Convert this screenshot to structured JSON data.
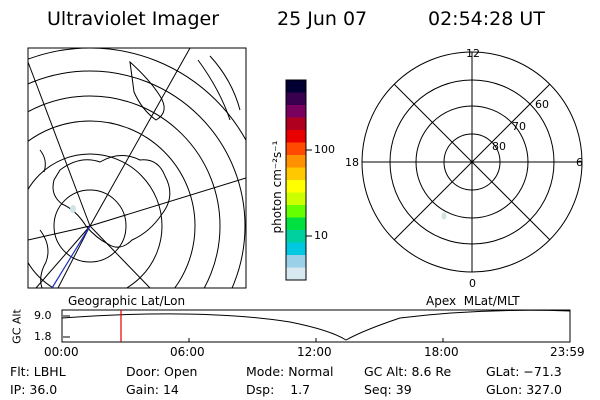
{
  "header": {
    "title": "Ultraviolet Imager",
    "date": "25 Jun 07",
    "time": "02:54:28 UT"
  },
  "colorbar": {
    "unit_label": "photon cm⁻²s⁻¹",
    "ticks": [
      "100",
      "10"
    ],
    "colors": [
      "#000033",
      "#3a0050",
      "#7a0060",
      "#b00020",
      "#e80000",
      "#ff4a00",
      "#ff9000",
      "#ffc800",
      "#ffff00",
      "#ccff00",
      "#66ff00",
      "#00e040",
      "#00d0a0",
      "#00c8e0",
      "#9ad0e8",
      "#d8e8f0"
    ]
  },
  "left_map": {
    "label": "Geographic Lat/Lon"
  },
  "right_map": {
    "label": "Apex  MLat/MLT",
    "mlt_labels": {
      "top": "12",
      "left": "18",
      "right": "6",
      "bottom": "0"
    },
    "lat_labels": [
      "60",
      "70",
      "80"
    ]
  },
  "altitude_plot": {
    "ylabel": "GC Alt",
    "yticks": [
      "9.0",
      "1.8"
    ],
    "xticks": [
      "00:00",
      "06:00",
      "12:00",
      "18:00",
      "23:59"
    ],
    "marker_time": "02:54"
  },
  "status": {
    "row1": [
      {
        "key": "Flt:",
        "val": "LBHL"
      },
      {
        "key": "Door:",
        "val": "Open"
      },
      {
        "key": "Mode:",
        "val": "Normal"
      },
      {
        "key": "GC Alt:",
        "val": "8.6 Re"
      },
      {
        "key": "GLat:",
        "val": "−71.3"
      }
    ],
    "row2": [
      {
        "key": "IP:",
        "val": "36.0"
      },
      {
        "key": "Gain:",
        "val": "14"
      },
      {
        "key": "Dsp:",
        "val": "   1.7"
      },
      {
        "key": "Seq:",
        "val": "39"
      },
      {
        "key": "GLon:",
        "val": "327.0"
      }
    ]
  }
}
